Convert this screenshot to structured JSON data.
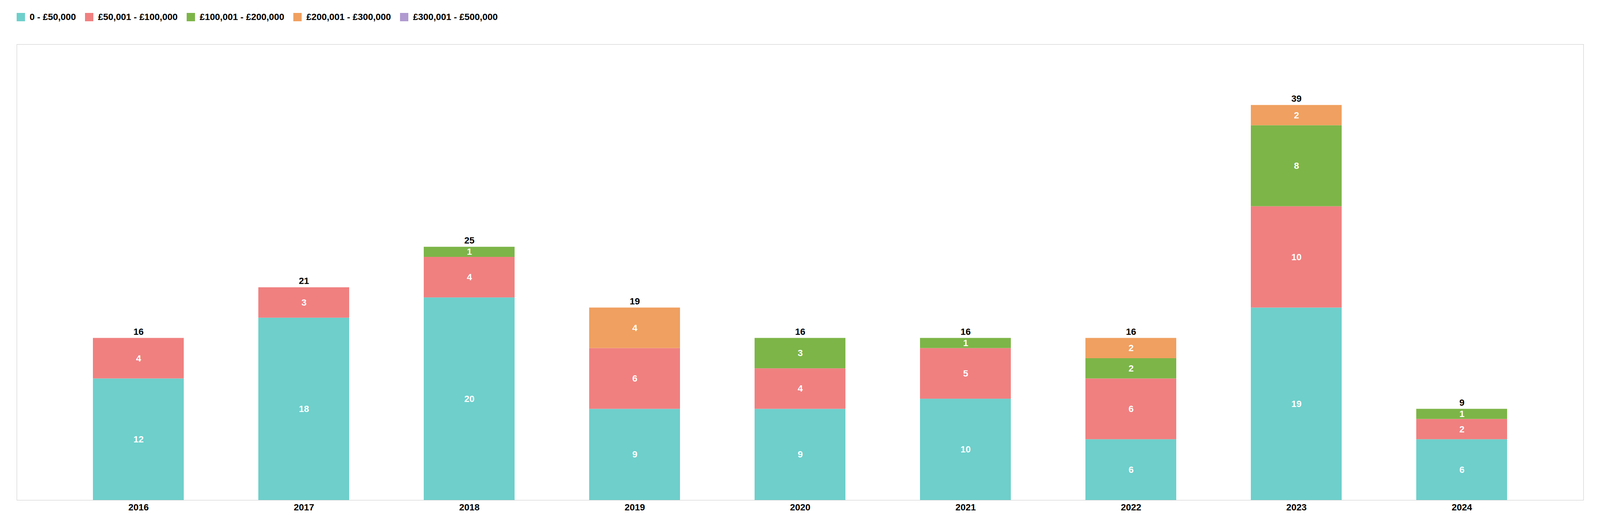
{
  "chart_data": {
    "type": "bar",
    "stacked": true,
    "categories": [
      "2016",
      "2017",
      "2018",
      "2019",
      "2020",
      "2021",
      "2022",
      "2023",
      "2024"
    ],
    "series": [
      {
        "name": "0 - £50,000",
        "color": "#6ecfcb",
        "values": [
          12,
          18,
          20,
          9,
          9,
          10,
          6,
          19,
          6
        ]
      },
      {
        "name": "£50,001 - £100,000",
        "color": "#f08080",
        "values": [
          4,
          3,
          4,
          6,
          4,
          5,
          6,
          10,
          2
        ]
      },
      {
        "name": "£100,001 - £200,000",
        "color": "#7db548",
        "values": [
          0,
          0,
          1,
          0,
          3,
          1,
          2,
          8,
          1
        ]
      },
      {
        "name": "£200,001 - £300,000",
        "color": "#f0a060",
        "values": [
          0,
          0,
          0,
          4,
          0,
          0,
          2,
          2,
          0
        ]
      },
      {
        "name": "£300,001 - £500,000",
        "color": "#b09ad0",
        "values": [
          0,
          0,
          0,
          0,
          0,
          0,
          0,
          0,
          0
        ]
      }
    ],
    "totals": [
      16,
      21,
      25,
      19,
      16,
      16,
      16,
      39,
      9
    ],
    "ylim": [
      0,
      45
    ],
    "yticks": [],
    "data_labels": true,
    "tick_labels": "x",
    "legend": "upper left"
  }
}
